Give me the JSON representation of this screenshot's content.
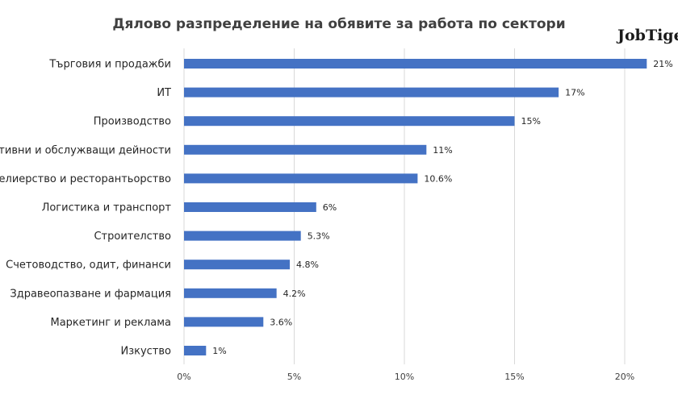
{
  "logo_text": "JobTiger",
  "colors": {
    "bar": "#4472C4",
    "grid": "#D9D9D9",
    "text": "#262626"
  },
  "chart_data": {
    "type": "bar",
    "orientation": "horizontal",
    "title": "Дялово разпределение на обявите за работа по сектори",
    "xlabel": "",
    "ylabel": "",
    "categories": [
      "Търговия и продажби",
      "ИТ",
      "Производство",
      "Административни и обслужващи дейности",
      "Хотелиерство и ресторантьорство",
      "Логистика и транспорт",
      "Строителство",
      "Счетоводство, одит, финанси",
      "Здравеопазване и фармация",
      "Маркетинг и реклама",
      "Изкуство"
    ],
    "values": [
      21,
      17,
      15,
      11,
      10.6,
      6,
      5.3,
      4.8,
      4.2,
      3.6,
      1
    ],
    "value_labels": [
      "21%",
      "17%",
      "15%",
      "11%",
      "10.6%",
      "6%",
      "5.3%",
      "4.8%",
      "4.2%",
      "3.6%",
      "1%"
    ],
    "x_ticks": [
      0,
      5,
      10,
      15,
      20
    ],
    "x_tick_labels": [
      "0%",
      "5%",
      "10%",
      "15%",
      "20%"
    ],
    "xlim": [
      0,
      22
    ],
    "grid": true,
    "legend": "none"
  }
}
